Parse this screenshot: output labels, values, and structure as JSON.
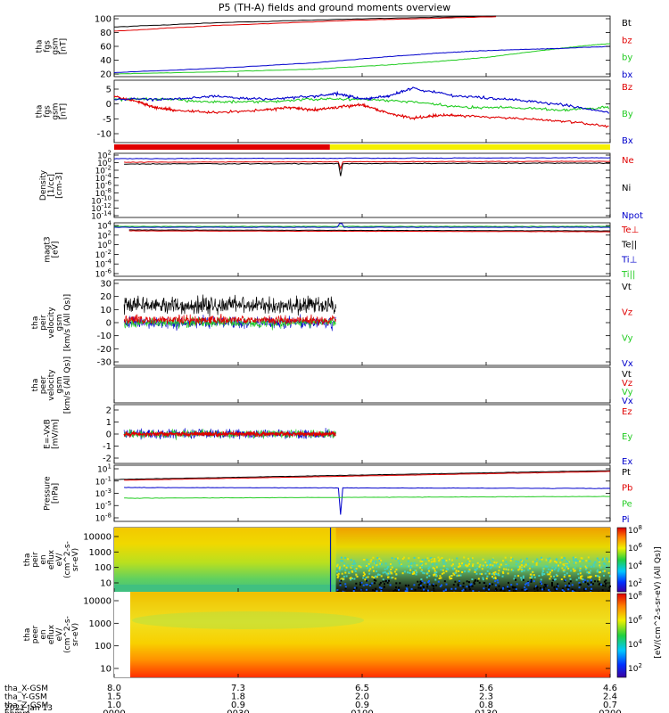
{
  "title": "P5 (TH-A) fields and ground moments overview",
  "colors": {
    "black": "#000000",
    "red": "#e00000",
    "green": "#22cc22",
    "blue": "#0000cc",
    "yellow": "#f5f000"
  },
  "chart_data": [
    {
      "type": "line",
      "panel": "fgs_mag",
      "ylabel": [
        "tha",
        "fgs",
        "gsm",
        "[nT]"
      ],
      "yticks": [
        "100",
        "80",
        "60",
        "40",
        "20"
      ],
      "ylim": [
        20,
        100
      ],
      "series": [
        {
          "name": "Bt",
          "color": "black",
          "x": [
            0,
            0.2,
            0.5,
            0.77
          ],
          "y": [
            88,
            94,
            100,
            104
          ]
        },
        {
          "name": "bz",
          "color": "red",
          "x": [
            0,
            0.2,
            0.5,
            0.77
          ],
          "y": [
            82,
            90,
            98,
            103
          ]
        },
        {
          "name": "by",
          "color": "green",
          "x": [
            0,
            0.2,
            0.4,
            0.55,
            0.65,
            0.75,
            0.85,
            0.95,
            1.0
          ],
          "y": [
            20,
            23,
            27,
            33,
            38,
            44,
            53,
            61,
            64
          ]
        },
        {
          "name": "bx",
          "color": "blue",
          "x": [
            0,
            0.2,
            0.4,
            0.55,
            0.65,
            0.72,
            0.8,
            0.9,
            1.0
          ],
          "y": [
            22,
            28,
            36,
            45,
            50,
            53,
            55,
            57,
            60
          ]
        }
      ]
    },
    {
      "type": "line",
      "panel": "fgs_detrended",
      "ylabel": [
        "tha",
        "fgs",
        "gsm",
        "[nT]"
      ],
      "yticks": [
        "5",
        "0",
        "-5",
        "-10"
      ],
      "ylim": [
        -14,
        9
      ],
      "series": [
        {
          "name": "Bz",
          "color": "red",
          "x": [
            0,
            0.05,
            0.08,
            0.12,
            0.2,
            0.3,
            0.35,
            0.4,
            0.45,
            0.5,
            0.55,
            0.6,
            0.65,
            0.7,
            0.8,
            0.9,
            1.0
          ],
          "y": [
            3,
            1,
            -1,
            -2,
            -3,
            -2,
            -1,
            -2,
            -1,
            0,
            -3,
            -5,
            -4,
            -4,
            -5,
            -6,
            -8
          ]
        },
        {
          "name": "By",
          "color": "green",
          "x": [
            0,
            0.1,
            0.2,
            0.3,
            0.4,
            0.5,
            0.6,
            0.7,
            0.8,
            0.9,
            1.0
          ],
          "y": [
            2,
            2,
            1,
            1,
            2,
            2,
            1,
            -1,
            -1,
            -2,
            -1
          ]
        },
        {
          "name": "Bx",
          "color": "blue",
          "x": [
            0,
            0.1,
            0.2,
            0.3,
            0.4,
            0.45,
            0.5,
            0.55,
            0.6,
            0.7,
            0.8,
            0.9,
            1.0
          ],
          "y": [
            2,
            2,
            3,
            2,
            3,
            4,
            2,
            3,
            6,
            3,
            2,
            0,
            -3
          ]
        }
      ]
    },
    {
      "type": "heatmap",
      "panel": "mode_bar",
      "segments": [
        {
          "from": 0,
          "to": 0.435,
          "color": "red"
        },
        {
          "from": 0.435,
          "to": 1,
          "color": "yellow"
        }
      ]
    },
    {
      "type": "line",
      "panel": "density",
      "ylabel": [
        "Density",
        "[1/cc]",
        "[cm-3]"
      ],
      "yticks": [
        "10^2",
        "10^0",
        "10^-2",
        "10^-4",
        "10^-6",
        "10^-8",
        "10^-10",
        "10^-12",
        "10^-14"
      ],
      "series": [
        {
          "name": "Ne",
          "color": "red"
        },
        {
          "name": "Ni",
          "color": "black"
        },
        {
          "name": "Npot",
          "color": "blue"
        }
      ]
    },
    {
      "type": "line",
      "panel": "temperature",
      "ylabel": [
        "magt3",
        "[eV]"
      ],
      "yticks": [
        "10^4",
        "10^2",
        "10^0",
        "10^-2",
        "10^-4",
        "10^-6"
      ],
      "series": [
        {
          "name": "Te⊥",
          "color": "red"
        },
        {
          "name": "Te||",
          "color": "black"
        },
        {
          "name": "Ti⊥",
          "color": "blue"
        },
        {
          "name": "Ti||",
          "color": "green"
        }
      ]
    },
    {
      "type": "line",
      "panel": "peir_velocity",
      "ylabel": [
        "tha",
        "peir",
        "velocity",
        "gsm",
        "[km/s (All Qs)]"
      ],
      "yticks": [
        "30",
        "20",
        "10",
        "0",
        "-10",
        "-20",
        "-30"
      ],
      "series": [
        {
          "name": "Vt",
          "color": "black"
        },
        {
          "name": "Vz",
          "color": "red"
        },
        {
          "name": "Vy",
          "color": "green"
        },
        {
          "name": "Vx",
          "color": "blue"
        }
      ]
    },
    {
      "type": "line",
      "panel": "peer_velocity",
      "ylabel": [
        "tha",
        "peer",
        "velocity",
        "gsm",
        "[km/s (All Qs)]"
      ],
      "series": [
        {
          "name": "Vt",
          "color": "black"
        },
        {
          "name": "Vz",
          "color": "red"
        },
        {
          "name": "Vy",
          "color": "green"
        },
        {
          "name": "Vx",
          "color": "blue"
        }
      ]
    },
    {
      "type": "line",
      "panel": "efield",
      "ylabel": [
        "E=-VxB",
        "[mV/m]"
      ],
      "yticks": [
        "2",
        "1",
        "0",
        "-1",
        "-2"
      ],
      "series": [
        {
          "name": "Ez",
          "color": "red"
        },
        {
          "name": "Ey",
          "color": "green"
        },
        {
          "name": "Ex",
          "color": "blue"
        }
      ]
    },
    {
      "type": "line",
      "panel": "pressure",
      "ylabel": [
        "Pressure",
        "[nPa]"
      ],
      "yticks": [
        "10^1",
        "10^-1",
        "10^-3",
        "10^-5",
        "10^-8"
      ],
      "series": [
        {
          "name": "Pt",
          "color": "black"
        },
        {
          "name": "Pb",
          "color": "red"
        },
        {
          "name": "Pe",
          "color": "green"
        },
        {
          "name": "Pi",
          "color": "blue"
        }
      ]
    },
    {
      "type": "heatmap",
      "panel": "peir_en_eflux",
      "ylabel": [
        "tha",
        "peir",
        "en",
        "eflux",
        "eV/",
        "(cm^2-s-",
        "sr-eV)"
      ],
      "yticks": [
        "10000",
        "1000",
        "100",
        "10"
      ]
    },
    {
      "type": "heatmap",
      "panel": "peer_en_eflux",
      "ylabel": [
        "tha",
        "peer",
        "en",
        "eflux",
        "eV/",
        "(cm^2-s-",
        "sr-eV)"
      ],
      "yticks": [
        "10000",
        "1000",
        "100",
        "10"
      ]
    }
  ],
  "colorbar": {
    "label": "[eV/(cm^2-s-sr-eV) (All Qs)]",
    "upper_ticks": [
      "10^8",
      "10^6",
      "10^4",
      "10^2"
    ],
    "lower_ticks": [
      "10^8",
      "10^6",
      "10^4",
      "10^2"
    ]
  },
  "xaxis": {
    "rows": [
      {
        "label": "tha_X-GSM",
        "values": [
          "8.0",
          "7.3",
          "6.5",
          "5.6",
          "4.6"
        ]
      },
      {
        "label": "tha_Y-GSM",
        "values": [
          "1.5",
          "1.8",
          "2.0",
          "2.3",
          "2.4"
        ]
      },
      {
        "label": "tha_Z-GSM",
        "values": [
          "1.0",
          "0.9",
          "0.9",
          "0.8",
          "0.7"
        ]
      },
      {
        "label": "hhmm",
        "values": [
          "0000",
          "0030",
          "0100",
          "0130",
          "0200"
        ]
      }
    ],
    "date": "2021 Jan 13"
  }
}
